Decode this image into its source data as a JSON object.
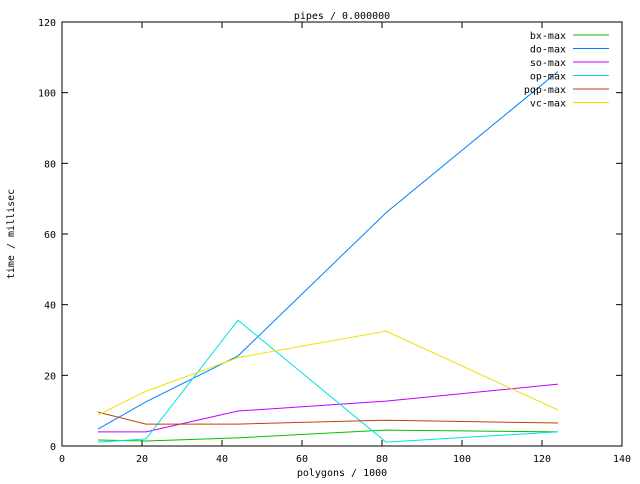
{
  "chart_data": {
    "type": "line",
    "title": "pipes / 0.000000",
    "xlabel": "polygons / 1000",
    "ylabel": "time / millisec",
    "xlim": [
      0,
      140
    ],
    "ylim": [
      0,
      120
    ],
    "xticks": [
      0,
      20,
      40,
      60,
      80,
      100,
      120,
      140
    ],
    "yticks": [
      0,
      20,
      40,
      60,
      80,
      100,
      120
    ],
    "grid": false,
    "legend_position": "top-right",
    "x": [
      9,
      21,
      44,
      81,
      124
    ],
    "series": [
      {
        "name": "bx-max",
        "color": "#00c000",
        "values": [
          1.7,
          1.4,
          2.3,
          4.5,
          4.0
        ]
      },
      {
        "name": "do-max",
        "color": "#0080ff",
        "values": [
          4.8,
          12.5,
          25.5,
          66,
          106
        ]
      },
      {
        "name": "so-max",
        "color": "#c000ff",
        "values": [
          4.0,
          4.0,
          9.9,
          12.7,
          17.5
        ]
      },
      {
        "name": "op-max",
        "color": "#00e0e0",
        "values": [
          1.1,
          2.0,
          35.6,
          1.1,
          4.0
        ]
      },
      {
        "name": "pqp-max",
        "color": "#c04000",
        "values": [
          9.6,
          6.2,
          6.2,
          7.3,
          6.5
        ]
      },
      {
        "name": "vc-max",
        "color": "#f0e000",
        "values": [
          8.8,
          15.5,
          25,
          32.5,
          10.2
        ]
      }
    ]
  }
}
